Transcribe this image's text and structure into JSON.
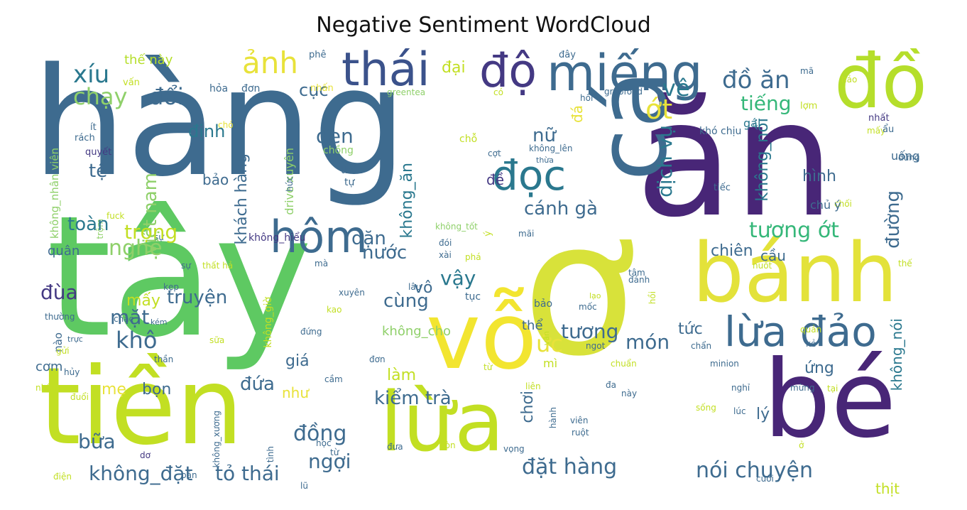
{
  "title": "Negative Sentiment WordCloud",
  "colors": {
    "navy": "#482677",
    "blue": "#3e6b8f",
    "teal": "#2a788e",
    "green": "#5ec962",
    "lime": "#b5de2b",
    "yellow": "#e8e23a",
    "mint": "#8fd06a",
    "sea": "#35b779"
  },
  "words": [
    {
      "text": "hàng",
      "color": "#3e6b8f"
    },
    {
      "text": "tây",
      "color": "#5ec962"
    },
    {
      "text": "ăn",
      "color": "#482677"
    },
    {
      "text": "ơ",
      "color": "#d8e23a"
    },
    {
      "text": "cá",
      "color": "#3e6b8f"
    },
    {
      "text": "đồ",
      "color": "#b5de2b"
    },
    {
      "text": "tiền",
      "color": "#c2df23"
    },
    {
      "text": "bé",
      "color": "#482677"
    },
    {
      "text": "vỗ",
      "color": "#f2e530"
    },
    {
      "text": "bánh",
      "color": "#e3e23a"
    },
    {
      "text": "lừa",
      "color": "#c2df23"
    },
    {
      "text": "thái",
      "color": "#3b528b"
    },
    {
      "text": "độ",
      "color": "#443983"
    },
    {
      "text": "miếng",
      "color": "#3e6b8f"
    },
    {
      "text": "lừa đảo",
      "color": "#3e6b8f"
    },
    {
      "text": "đọc",
      "color": "#2a788e"
    },
    {
      "text": "hôm",
      "color": "#3e6b8f"
    },
    {
      "text": "ảnh",
      "color": "#e8e23a"
    },
    {
      "text": "xíu",
      "color": "#2a788e"
    },
    {
      "text": "chạy",
      "color": "#8fd06a"
    },
    {
      "text": "đổi",
      "color": "#3e6b8f"
    },
    {
      "text": "thế này",
      "color": "#b5de2b"
    },
    {
      "text": "vấn",
      "color": "#c2df23"
    },
    {
      "text": "phê",
      "color": "#3e6b8f"
    },
    {
      "text": "đại",
      "color": "#c2df23"
    },
    {
      "text": "cục",
      "color": "#3e6b8f"
    },
    {
      "text": "hỏa",
      "color": "#3e6b8f"
    },
    {
      "text": "đơn",
      "color": "#3e6b8f"
    },
    {
      "text": "nhấn",
      "color": "#e8e23a"
    },
    {
      "text": "greentea",
      "color": "#8fd06a"
    },
    {
      "text": "có",
      "color": "#c2df23"
    },
    {
      "text": "đây",
      "color": "#3e6b8f"
    },
    {
      "text": "vệ",
      "color": "#2a788e"
    },
    {
      "text": "đồ ăn",
      "color": "#3e6b8f"
    },
    {
      "text": "mã",
      "color": "#3e6b8f"
    },
    {
      "text": "hảo",
      "color": "#c2df23"
    },
    {
      "text": "tiếng",
      "color": "#35b779"
    },
    {
      "text": "hồi",
      "color": "#3e6b8f"
    },
    {
      "text": "grabfood",
      "color": "#3e6b8f"
    },
    {
      "text": "ớt",
      "color": "#e8e23a"
    },
    {
      "text": "gái",
      "color": "#2a788e"
    },
    {
      "text": "lợm",
      "color": "#c2df23"
    },
    {
      "text": "nhất",
      "color": "#443983"
    },
    {
      "text": "mấy",
      "color": "#c2df23"
    },
    {
      "text": "ẩu",
      "color": "#3e6b8f"
    },
    {
      "text": "đá",
      "color": "#e8e23a"
    },
    {
      "text": "không_nhân viên",
      "color": "#8fd06a"
    },
    {
      "text": "ít",
      "color": "#3e6b8f"
    },
    {
      "text": "rách",
      "color": "#3e6b8f"
    },
    {
      "text": "quyết",
      "color": "#443983"
    },
    {
      "text": "định",
      "color": "#2a788e"
    },
    {
      "text": "chó",
      "color": "#e8e23a"
    },
    {
      "text": "việt nam",
      "color": "#8fd06a"
    },
    {
      "text": "khách hàng",
      "color": "#3e6b8f"
    },
    {
      "text": "drive xuyên",
      "color": "#8fd06a"
    },
    {
      "text": "đen",
      "color": "#3e6b8f"
    },
    {
      "text": "chồng",
      "color": "#8fd06a"
    },
    {
      "text": "chỗ",
      "color": "#c2df23"
    },
    {
      "text": "cợt",
      "color": "#3e6b8f"
    },
    {
      "text": "không_lên",
      "color": "#3e6b8f"
    },
    {
      "text": "thừa",
      "color": "#3e6b8f"
    },
    {
      "text": "nữ",
      "color": "#3e6b8f"
    },
    {
      "text": "dịch vụ",
      "color": "#2a788e"
    },
    {
      "text": "khó chịu",
      "color": "#3e6b8f"
    },
    {
      "text": "không_nổi",
      "color": "#2a788e"
    },
    {
      "text": "đừng",
      "color": "#3e6b8f"
    },
    {
      "text": "uống",
      "color": "#3e6b8f"
    },
    {
      "text": "tệ",
      "color": "#3e6b8f"
    },
    {
      "text": "bảo",
      "color": "#3e6b8f"
    },
    {
      "text": "không_ăn",
      "color": "#2a788e"
    },
    {
      "text": "thức",
      "color": "#3e6b8f"
    },
    {
      "text": "tự",
      "color": "#3e6b8f"
    },
    {
      "text": "hức",
      "color": "#3e6b8f"
    },
    {
      "text": "đề",
      "color": "#443983"
    },
    {
      "text": "hình",
      "color": "#3e6b8f"
    },
    {
      "text": "tiếc",
      "color": "#3e6b8f"
    },
    {
      "text": "chối",
      "color": "#c2df23"
    },
    {
      "text": "chủ ý",
      "color": "#3e6b8f"
    },
    {
      "text": "tâm",
      "color": "#3e6b8f"
    },
    {
      "text": "trộm",
      "color": "#8fd06a"
    },
    {
      "text": "fuck",
      "color": "#c2df23"
    },
    {
      "text": "sự",
      "color": "#3e6b8f"
    },
    {
      "text": "toàn",
      "color": "#2a788e"
    },
    {
      "text": "trọng",
      "color": "#c2df23"
    },
    {
      "text": "không_hiểu",
      "color": "#443983"
    },
    {
      "text": "dặn",
      "color": "#3e6b8f"
    },
    {
      "text": "không_tốt",
      "color": "#8fd06a"
    },
    {
      "text": "mãi",
      "color": "#3e6b8f"
    },
    {
      "text": "ý",
      "color": "#c2df23"
    },
    {
      "text": "đói",
      "color": "#3e6b8f"
    },
    {
      "text": "xài",
      "color": "#3e6b8f"
    },
    {
      "text": "cánh gà",
      "color": "#3e6b8f"
    },
    {
      "text": "tương ớt",
      "color": "#35b779"
    },
    {
      "text": "đường",
      "color": "#3e6b8f"
    },
    {
      "text": "quân",
      "color": "#3e6b8f"
    },
    {
      "text": "nghệ",
      "color": "#8fd06a"
    },
    {
      "text": "nước",
      "color": "#3e6b8f"
    },
    {
      "text": "chiên",
      "color": "#3e6b8f"
    },
    {
      "text": "cầu",
      "color": "#3e6b8f"
    },
    {
      "text": "sự",
      "color": "#3e6b8f"
    },
    {
      "text": "thất hả",
      "color": "#c2df23"
    },
    {
      "text": "mà",
      "color": "#3e6b8f"
    },
    {
      "text": "phá",
      "color": "#c2df23"
    },
    {
      "text": "nuốt",
      "color": "#c2df23"
    },
    {
      "text": "thế",
      "color": "#c2df23"
    },
    {
      "text": "đùa",
      "color": "#443983"
    },
    {
      "text": "mấy",
      "color": "#c2df23"
    },
    {
      "text": "truyện",
      "color": "#3e6b8f"
    },
    {
      "text": "vậy",
      "color": "#2a788e"
    },
    {
      "text": "vô",
      "color": "#3e6b8f"
    },
    {
      "text": "lâu",
      "color": "#3e6b8f"
    },
    {
      "text": "kẹp",
      "color": "#3e6b8f"
    },
    {
      "text": "không_giờ",
      "color": "#c2df23"
    },
    {
      "text": "xuyên",
      "color": "#3e6b8f"
    },
    {
      "text": "cùng",
      "color": "#3e6b8f"
    },
    {
      "text": "tục",
      "color": "#3e6b8f"
    },
    {
      "text": "lạo",
      "color": "#c2df23"
    },
    {
      "text": "đánh",
      "color": "#3e6b8f"
    },
    {
      "text": "bảo",
      "color": "#3e6b8f"
    },
    {
      "text": "mốc",
      "color": "#3e6b8f"
    },
    {
      "text": "hồi",
      "color": "#c2df23"
    },
    {
      "text": "mặt",
      "color": "#3e6b8f"
    },
    {
      "text": "thường",
      "color": "#3e6b8f"
    },
    {
      "text": "chắc",
      "color": "#3e6b8f"
    },
    {
      "text": "kao",
      "color": "#c2df23"
    },
    {
      "text": "không_cho",
      "color": "#8fd06a"
    },
    {
      "text": "thể",
      "color": "#3e6b8f"
    },
    {
      "text": "tương",
      "color": "#3e6b8f"
    },
    {
      "text": "tức",
      "color": "#3e6b8f"
    },
    {
      "text": "nào",
      "color": "#3e6b8f"
    },
    {
      "text": "kém",
      "color": "#3e6b8f"
    },
    {
      "text": "khô",
      "color": "#3e6b8f"
    },
    {
      "text": "trực",
      "color": "#3e6b8f"
    },
    {
      "text": "sữa",
      "color": "#c2df23"
    },
    {
      "text": "đứng",
      "color": "#3e6b8f"
    },
    {
      "text": "ức",
      "color": "#e8e23a"
    },
    {
      "text": "vấn",
      "color": "#c2df23"
    },
    {
      "text": "món",
      "color": "#3e6b8f"
    },
    {
      "text": "ngot",
      "color": "#3e6b8f"
    },
    {
      "text": "chẩn",
      "color": "#3e6b8f"
    },
    {
      "text": "quản",
      "color": "#c2df23"
    },
    {
      "text": "kẻ",
      "color": "#3e6b8f"
    },
    {
      "text": "gửi",
      "color": "#c2df23"
    },
    {
      "text": "cơm",
      "color": "#3e6b8f"
    },
    {
      "text": "hủy",
      "color": "#3e6b8f"
    },
    {
      "text": "thần",
      "color": "#3e6b8f"
    },
    {
      "text": "giá",
      "color": "#3e6b8f"
    },
    {
      "text": "đơn",
      "color": "#3e6b8f"
    },
    {
      "text": "mì",
      "color": "#c2df23"
    },
    {
      "text": "từ",
      "color": "#c2df23"
    },
    {
      "text": "chuẩn",
      "color": "#c2df23"
    },
    {
      "text": "minion",
      "color": "#3e6b8f"
    },
    {
      "text": "ứng",
      "color": "#3e6b8f"
    },
    {
      "text": "không_nói",
      "color": "#2a788e"
    },
    {
      "text": "nhân",
      "color": "#c2df23"
    },
    {
      "text": "mẹ",
      "color": "#e8e23a"
    },
    {
      "text": "bọn",
      "color": "#3e6b8f"
    },
    {
      "text": "đứa",
      "color": "#3e6b8f"
    },
    {
      "text": "như",
      "color": "#e8e23a"
    },
    {
      "text": "cầm",
      "color": "#3e6b8f"
    },
    {
      "text": "làm",
      "color": "#c2df23"
    },
    {
      "text": "kiểm trà",
      "color": "#3e6b8f"
    },
    {
      "text": "liên",
      "color": "#c2df23"
    },
    {
      "text": "đa",
      "color": "#3e6b8f"
    },
    {
      "text": "này",
      "color": "#3e6b8f"
    },
    {
      "text": "nghỉ",
      "color": "#3e6b8f"
    },
    {
      "text": "mừng",
      "color": "#3e6b8f"
    },
    {
      "text": "tại",
      "color": "#c2df23"
    },
    {
      "text": "đuổi",
      "color": "#c2df23"
    },
    {
      "text": "không_xương",
      "color": "#3e6b8f"
    },
    {
      "text": "chơi",
      "color": "#3e6b8f"
    },
    {
      "text": "hành",
      "color": "#3e6b8f"
    },
    {
      "text": "viên",
      "color": "#3e6b8f"
    },
    {
      "text": "ruột",
      "color": "#3e6b8f"
    },
    {
      "text": "sống",
      "color": "#c2df23"
    },
    {
      "text": "lúc",
      "color": "#3e6b8f"
    },
    {
      "text": "lý",
      "color": "#3e6b8f"
    },
    {
      "text": "bữa",
      "color": "#3e6b8f"
    },
    {
      "text": "đồng",
      "color": "#3e6b8f"
    },
    {
      "text": "dơ",
      "color": "#443983"
    },
    {
      "text": "tình",
      "color": "#3e6b8f"
    },
    {
      "text": "học",
      "color": "#3e6b8f"
    },
    {
      "text": "từ",
      "color": "#3e6b8f"
    },
    {
      "text": "đưa",
      "color": "#3e6b8f"
    },
    {
      "text": "còn",
      "color": "#c2df23"
    },
    {
      "text": "vọng",
      "color": "#3e6b8f"
    },
    {
      "text": "ở",
      "color": "#c2df23"
    },
    {
      "text": "ngợi",
      "color": "#3e6b8f"
    },
    {
      "text": "đặt hàng",
      "color": "#3e6b8f"
    },
    {
      "text": "nói chuyện",
      "color": "#3e6b8f"
    },
    {
      "text": "không_đặt",
      "color": "#3e6b8f"
    },
    {
      "text": "tỏ thái",
      "color": "#3e6b8f"
    },
    {
      "text": "điện",
      "color": "#c2df23"
    },
    {
      "text": "bản",
      "color": "#3e6b8f"
    },
    {
      "text": "lũ",
      "color": "#3e6b8f"
    },
    {
      "text": "thịt",
      "color": "#c2df23"
    },
    {
      "text": "cuối",
      "color": "#3e6b8f"
    }
  ]
}
